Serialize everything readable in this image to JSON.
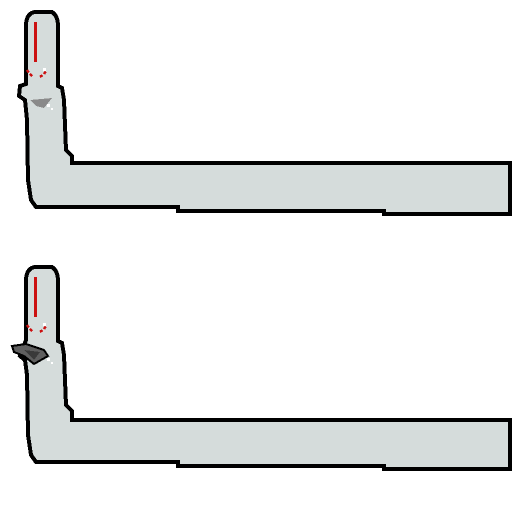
{
  "palette": {
    "background": "#ffffff",
    "outline": "#000000",
    "body_fill": "#d5dcdb",
    "accent_red": "#cc1111",
    "shadow_gray": "#8a8a8a",
    "dark_gray": "#5f5f5f",
    "highlight": "#ffffff"
  },
  "sprites": [
    {
      "id": "frame-1",
      "variant": "idle"
    },
    {
      "id": "frame-2",
      "variant": "triggered"
    }
  ]
}
